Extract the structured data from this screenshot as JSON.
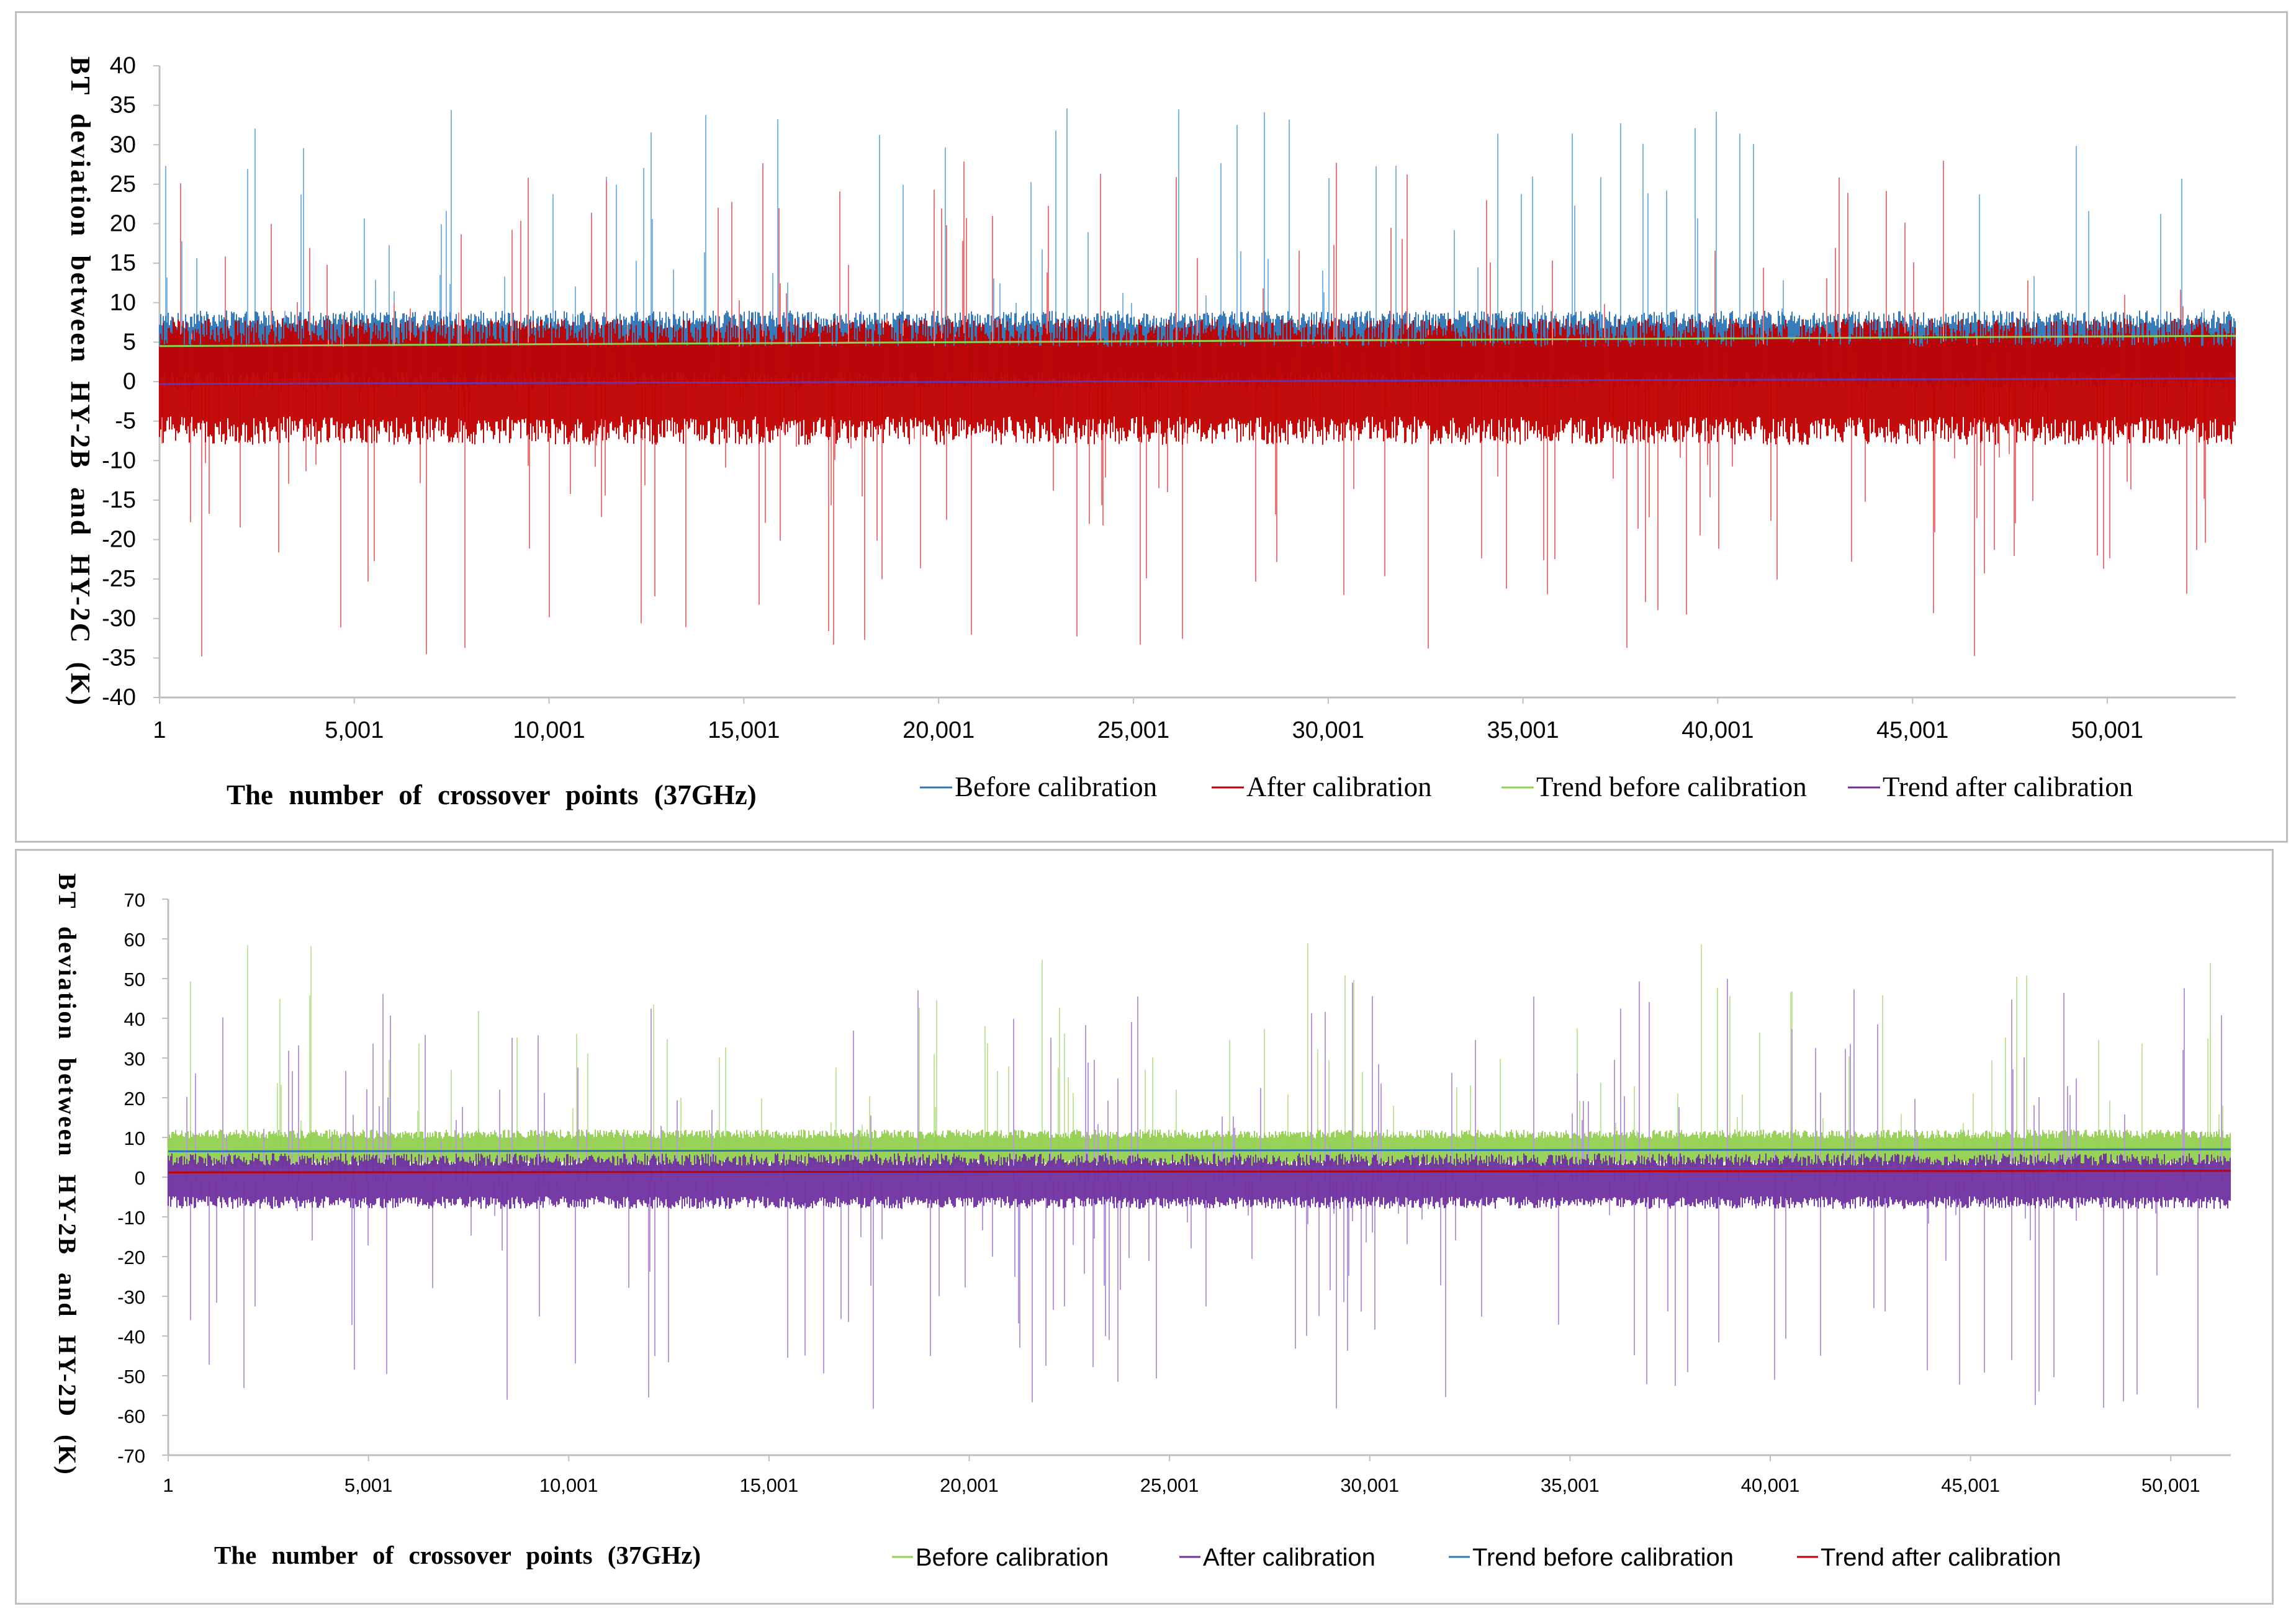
{
  "chart_data": [
    {
      "type": "line",
      "ylabel": "BT deviation between HY-2B and HY-2C (K)",
      "xlabel": "The number of crossover points (37GHz)",
      "ylim": [
        -40,
        40
      ],
      "yticks": [
        40,
        35,
        30,
        25,
        20,
        15,
        10,
        5,
        0,
        -5,
        -10,
        -15,
        -20,
        -25,
        -30,
        -35,
        -40
      ],
      "xlim": [
        1,
        53300
      ],
      "xticks": [
        1,
        5001,
        10001,
        15001,
        20001,
        25001,
        30001,
        35001,
        40001,
        45001,
        50001
      ],
      "xtick_labels": [
        "1",
        "5,001",
        "10,001",
        "15,001",
        "20,001",
        "25,001",
        "30,001",
        "35,001",
        "40,001",
        "45,001",
        "50,001"
      ],
      "legend": [
        "Before calibration",
        "After calibration",
        "Trend before calibration",
        "Trend after calibration"
      ],
      "series": [
        {
          "name": "Before calibration",
          "color": "#2e75b6",
          "light_color": "#7fb6e6",
          "typical_range": [
            -1,
            9
          ],
          "spike_max": 35
        },
        {
          "name": "After calibration",
          "color": "#c00000",
          "light_color": "#e8787c",
          "typical_range": [
            -8,
            8
          ],
          "spike_max": 28,
          "spike_min": -35
        },
        {
          "name": "Trend before calibration",
          "color": "#92d050",
          "trend": {
            "x": [
              1,
              53300
            ],
            "y": [
              4.5,
              5.8
            ]
          }
        },
        {
          "name": "Trend after calibration",
          "color": "#7030a0",
          "trend": {
            "x": [
              1,
              53300
            ],
            "y": [
              -0.3,
              0.4
            ]
          }
        }
      ]
    },
    {
      "type": "line",
      "ylabel": "BT deviation between HY-2B and HY-2D (K)",
      "xlabel": "The number of crossover points (37GHz)",
      "ylim": [
        -70,
        70
      ],
      "yticks": [
        70,
        60,
        50,
        40,
        30,
        20,
        10,
        0,
        -10,
        -20,
        -30,
        -40,
        -50,
        -60,
        -70
      ],
      "xlim": [
        1,
        51500
      ],
      "xticks": [
        1,
        5001,
        10001,
        15001,
        20001,
        25001,
        30001,
        35001,
        40001,
        45001,
        50001
      ],
      "xtick_labels": [
        "1",
        "5,001",
        "10,001",
        "15,001",
        "20,001",
        "25,001",
        "30,001",
        "35,001",
        "40,001",
        "45,001",
        "50,001"
      ],
      "legend": [
        "Before calibration",
        "After calibration",
        "Trend before calibration",
        "Trend after calibration"
      ],
      "series": [
        {
          "name": "Before calibration",
          "color": "#92d050",
          "light_color": "#c4e59f",
          "typical_range": [
            2,
            12
          ],
          "spike_max": 59
        },
        {
          "name": "After calibration",
          "color": "#7030a0",
          "light_color": "#b99ad8",
          "typical_range": [
            -8,
            6
          ],
          "spike_max": 50,
          "spike_min": -59
        },
        {
          "name": "Trend before calibration",
          "color": "#2e75b6",
          "trend": {
            "x": [
              1,
              51500
            ],
            "y": [
              6.5,
              7.0
            ]
          }
        },
        {
          "name": "Trend after calibration",
          "color": "#c00000",
          "trend": {
            "x": [
              1,
              51500
            ],
            "y": [
              1.2,
              1.6
            ]
          }
        }
      ]
    }
  ]
}
